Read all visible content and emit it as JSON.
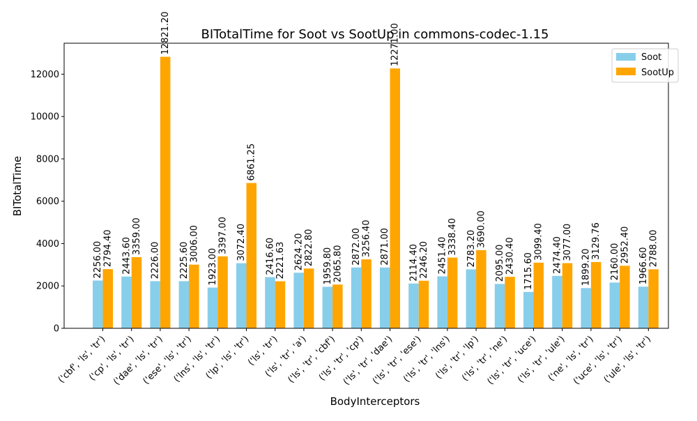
{
  "chart_data": {
    "type": "bar",
    "title": "BITotalTime for Soot vs SootUp in commons-codec-1.15",
    "xlabel": "BodyInterceptors",
    "ylabel": "BITotalTime",
    "ylim": [
      0,
      13462
    ],
    "yticks": [
      0,
      2000,
      4000,
      6000,
      8000,
      10000,
      12000
    ],
    "legend_position": "top-right",
    "categories": [
      "('cbf', 'ls', 'tr')",
      "('cp', 'ls', 'tr')",
      "('dae', 'ls', 'tr')",
      "('ese', 'ls', 'tr')",
      "('lns', 'ls', 'tr')",
      "('lp', 'ls', 'tr')",
      "('ls', 'tr')",
      "('ls', 'tr', 'a')",
      "('ls', 'tr', 'cbf')",
      "('ls', 'tr', 'cp')",
      "('ls', 'tr', 'dae')",
      "('ls', 'tr', 'ese')",
      "('ls', 'tr', 'lns')",
      "('ls', 'tr', 'lp')",
      "('ls', 'tr', 'ne')",
      "('ls', 'tr', 'uce')",
      "('ls', 'tr', 'ule')",
      "('ne', 'ls', 'tr')",
      "('uce', 'ls', 'tr')",
      "('ule', 'ls', 'tr')"
    ],
    "series": [
      {
        "name": "Soot",
        "color": "#87ceeb",
        "values": [
          2256.0,
          2443.6,
          2226.0,
          2225.6,
          1923.0,
          3072.4,
          2416.6,
          2624.2,
          1959.8,
          2872.0,
          2871.0,
          2114.4,
          2451.4,
          2783.2,
          2095.0,
          1715.6,
          2474.4,
          1899.2,
          2160.0,
          1966.6
        ],
        "labels": [
          "2256.00",
          "2443.60",
          "2226.00",
          "2225.60",
          "1923.00",
          "3072.40",
          "2416.60",
          "2624.20",
          "1959.80",
          "2872.00",
          "2871.00",
          "2114.40",
          "2451.40",
          "2783.20",
          "2095.00",
          "1715.60",
          "2474.40",
          "1899.20",
          "2160.00",
          "1966.60"
        ]
      },
      {
        "name": "SootUp",
        "color": "#ffa500",
        "values": [
          2794.4,
          3359.0,
          12821.2,
          3006.0,
          3397.0,
          6861.25,
          2221.63,
          2822.8,
          2065.8,
          3256.4,
          12271.0,
          2246.2,
          3338.4,
          3690.0,
          2430.4,
          3099.4,
          3077.0,
          3129.76,
          2952.4,
          2788.0
        ],
        "labels": [
          "2794.40",
          "3359.00",
          "12821.20",
          "3006.00",
          "3397.00",
          "6861.25",
          "2221.63",
          "2822.80",
          "2065.80",
          "3256.40",
          "12271.00",
          "2246.20",
          "3338.40",
          "3690.00",
          "2430.40",
          "3099.40",
          "3077.00",
          "3129.76",
          "2952.40",
          "2788.00"
        ]
      }
    ]
  }
}
